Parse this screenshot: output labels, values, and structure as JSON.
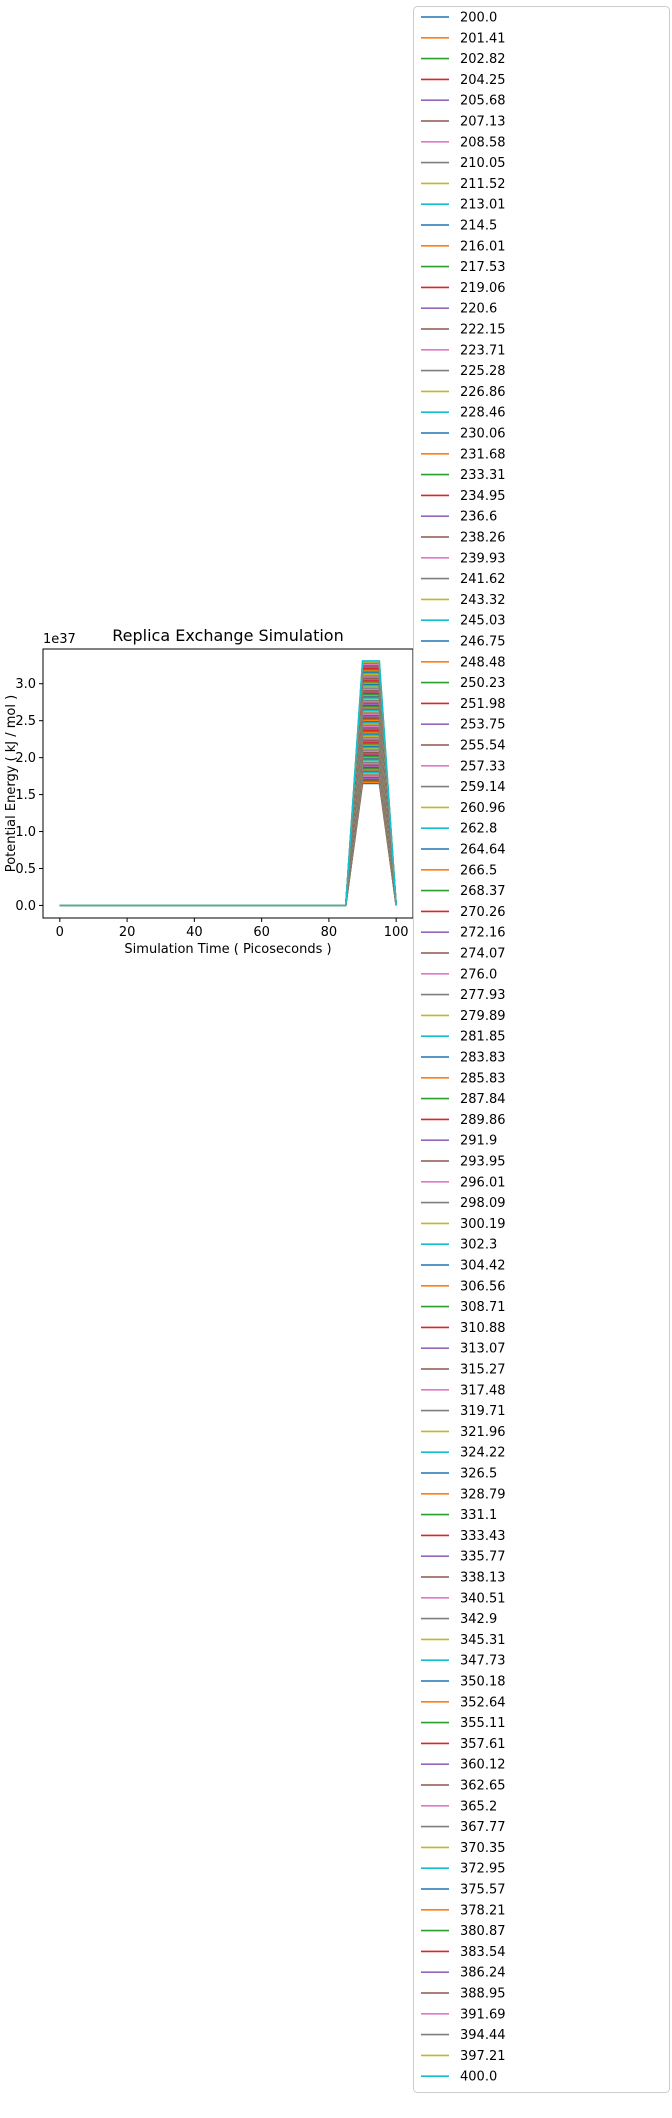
{
  "chart_data": {
    "type": "line",
    "title": "Replica Exchange Simulation",
    "xlabel": "Simulation Time ( Picoseconds )",
    "ylabel": "Potential Energy ( kJ / mol )",
    "y_offset_text": "1e37",
    "xlim": [
      -5,
      105
    ],
    "ylim": [
      -0.17,
      3.47
    ],
    "x_ticks": [
      0,
      20,
      40,
      60,
      80,
      100
    ],
    "x_tick_labels": [
      "0",
      "20",
      "40",
      "60",
      "80",
      "100"
    ],
    "y_ticks": [
      0.0,
      0.5,
      1.0,
      1.5,
      2.0,
      2.5,
      3.0
    ],
    "y_tick_labels": [
      "0.0",
      "0.5",
      "1.0",
      "1.5",
      "2.0",
      "2.5",
      "3.0"
    ],
    "y_scale_note": "y values in units of 1e37 kJ/mol",
    "x": [
      0,
      5,
      10,
      15,
      20,
      25,
      30,
      35,
      40,
      45,
      50,
      55,
      60,
      65,
      70,
      75,
      80,
      85,
      90,
      95,
      100
    ],
    "shape": [
      0,
      0,
      0,
      0,
      0,
      0,
      0,
      0,
      0,
      0,
      0,
      0,
      0,
      0,
      0,
      0,
      0,
      0,
      1,
      1,
      0
    ],
    "peak_range": [
      1.65,
      3.31
    ],
    "legend_position": "outside right",
    "colors": [
      "#1f77b4",
      "#ff7f0e",
      "#2ca02c",
      "#d62728",
      "#9467bd",
      "#8c564b",
      "#e377c2",
      "#7f7f7f",
      "#bcbd22",
      "#17becf"
    ],
    "series": [
      {
        "name": "200.0"
      },
      {
        "name": "201.41"
      },
      {
        "name": "202.82"
      },
      {
        "name": "204.25"
      },
      {
        "name": "205.68"
      },
      {
        "name": "207.13"
      },
      {
        "name": "208.58"
      },
      {
        "name": "210.05"
      },
      {
        "name": "211.52"
      },
      {
        "name": "213.01"
      },
      {
        "name": "214.5"
      },
      {
        "name": "216.01"
      },
      {
        "name": "217.53"
      },
      {
        "name": "219.06"
      },
      {
        "name": "220.6"
      },
      {
        "name": "222.15"
      },
      {
        "name": "223.71"
      },
      {
        "name": "225.28"
      },
      {
        "name": "226.86"
      },
      {
        "name": "228.46"
      },
      {
        "name": "230.06"
      },
      {
        "name": "231.68"
      },
      {
        "name": "233.31"
      },
      {
        "name": "234.95"
      },
      {
        "name": "236.6"
      },
      {
        "name": "238.26"
      },
      {
        "name": "239.93"
      },
      {
        "name": "241.62"
      },
      {
        "name": "243.32"
      },
      {
        "name": "245.03"
      },
      {
        "name": "246.75"
      },
      {
        "name": "248.48"
      },
      {
        "name": "250.23"
      },
      {
        "name": "251.98"
      },
      {
        "name": "253.75"
      },
      {
        "name": "255.54"
      },
      {
        "name": "257.33"
      },
      {
        "name": "259.14"
      },
      {
        "name": "260.96"
      },
      {
        "name": "262.8"
      },
      {
        "name": "264.64"
      },
      {
        "name": "266.5"
      },
      {
        "name": "268.37"
      },
      {
        "name": "270.26"
      },
      {
        "name": "272.16"
      },
      {
        "name": "274.07"
      },
      {
        "name": "276.0"
      },
      {
        "name": "277.93"
      },
      {
        "name": "279.89"
      },
      {
        "name": "281.85"
      },
      {
        "name": "283.83"
      },
      {
        "name": "285.83"
      },
      {
        "name": "287.84"
      },
      {
        "name": "289.86"
      },
      {
        "name": "291.9"
      },
      {
        "name": "293.95"
      },
      {
        "name": "296.01"
      },
      {
        "name": "298.09"
      },
      {
        "name": "300.19"
      },
      {
        "name": "302.3"
      },
      {
        "name": "304.42"
      },
      {
        "name": "306.56"
      },
      {
        "name": "308.71"
      },
      {
        "name": "310.88"
      },
      {
        "name": "313.07"
      },
      {
        "name": "315.27"
      },
      {
        "name": "317.48"
      },
      {
        "name": "319.71"
      },
      {
        "name": "321.96"
      },
      {
        "name": "324.22"
      },
      {
        "name": "326.5"
      },
      {
        "name": "328.79"
      },
      {
        "name": "331.1"
      },
      {
        "name": "333.43"
      },
      {
        "name": "335.77"
      },
      {
        "name": "338.13"
      },
      {
        "name": "340.51"
      },
      {
        "name": "342.9"
      },
      {
        "name": "345.31"
      },
      {
        "name": "347.73"
      },
      {
        "name": "350.18"
      },
      {
        "name": "352.64"
      },
      {
        "name": "355.11"
      },
      {
        "name": "357.61"
      },
      {
        "name": "360.12"
      },
      {
        "name": "362.65"
      },
      {
        "name": "365.2"
      },
      {
        "name": "367.77"
      },
      {
        "name": "370.35"
      },
      {
        "name": "372.95"
      },
      {
        "name": "375.57"
      },
      {
        "name": "378.21"
      },
      {
        "name": "380.87"
      },
      {
        "name": "383.54"
      },
      {
        "name": "386.24"
      },
      {
        "name": "388.95"
      },
      {
        "name": "391.69"
      },
      {
        "name": "394.44"
      },
      {
        "name": "397.21"
      },
      {
        "name": "400.0"
      }
    ]
  }
}
